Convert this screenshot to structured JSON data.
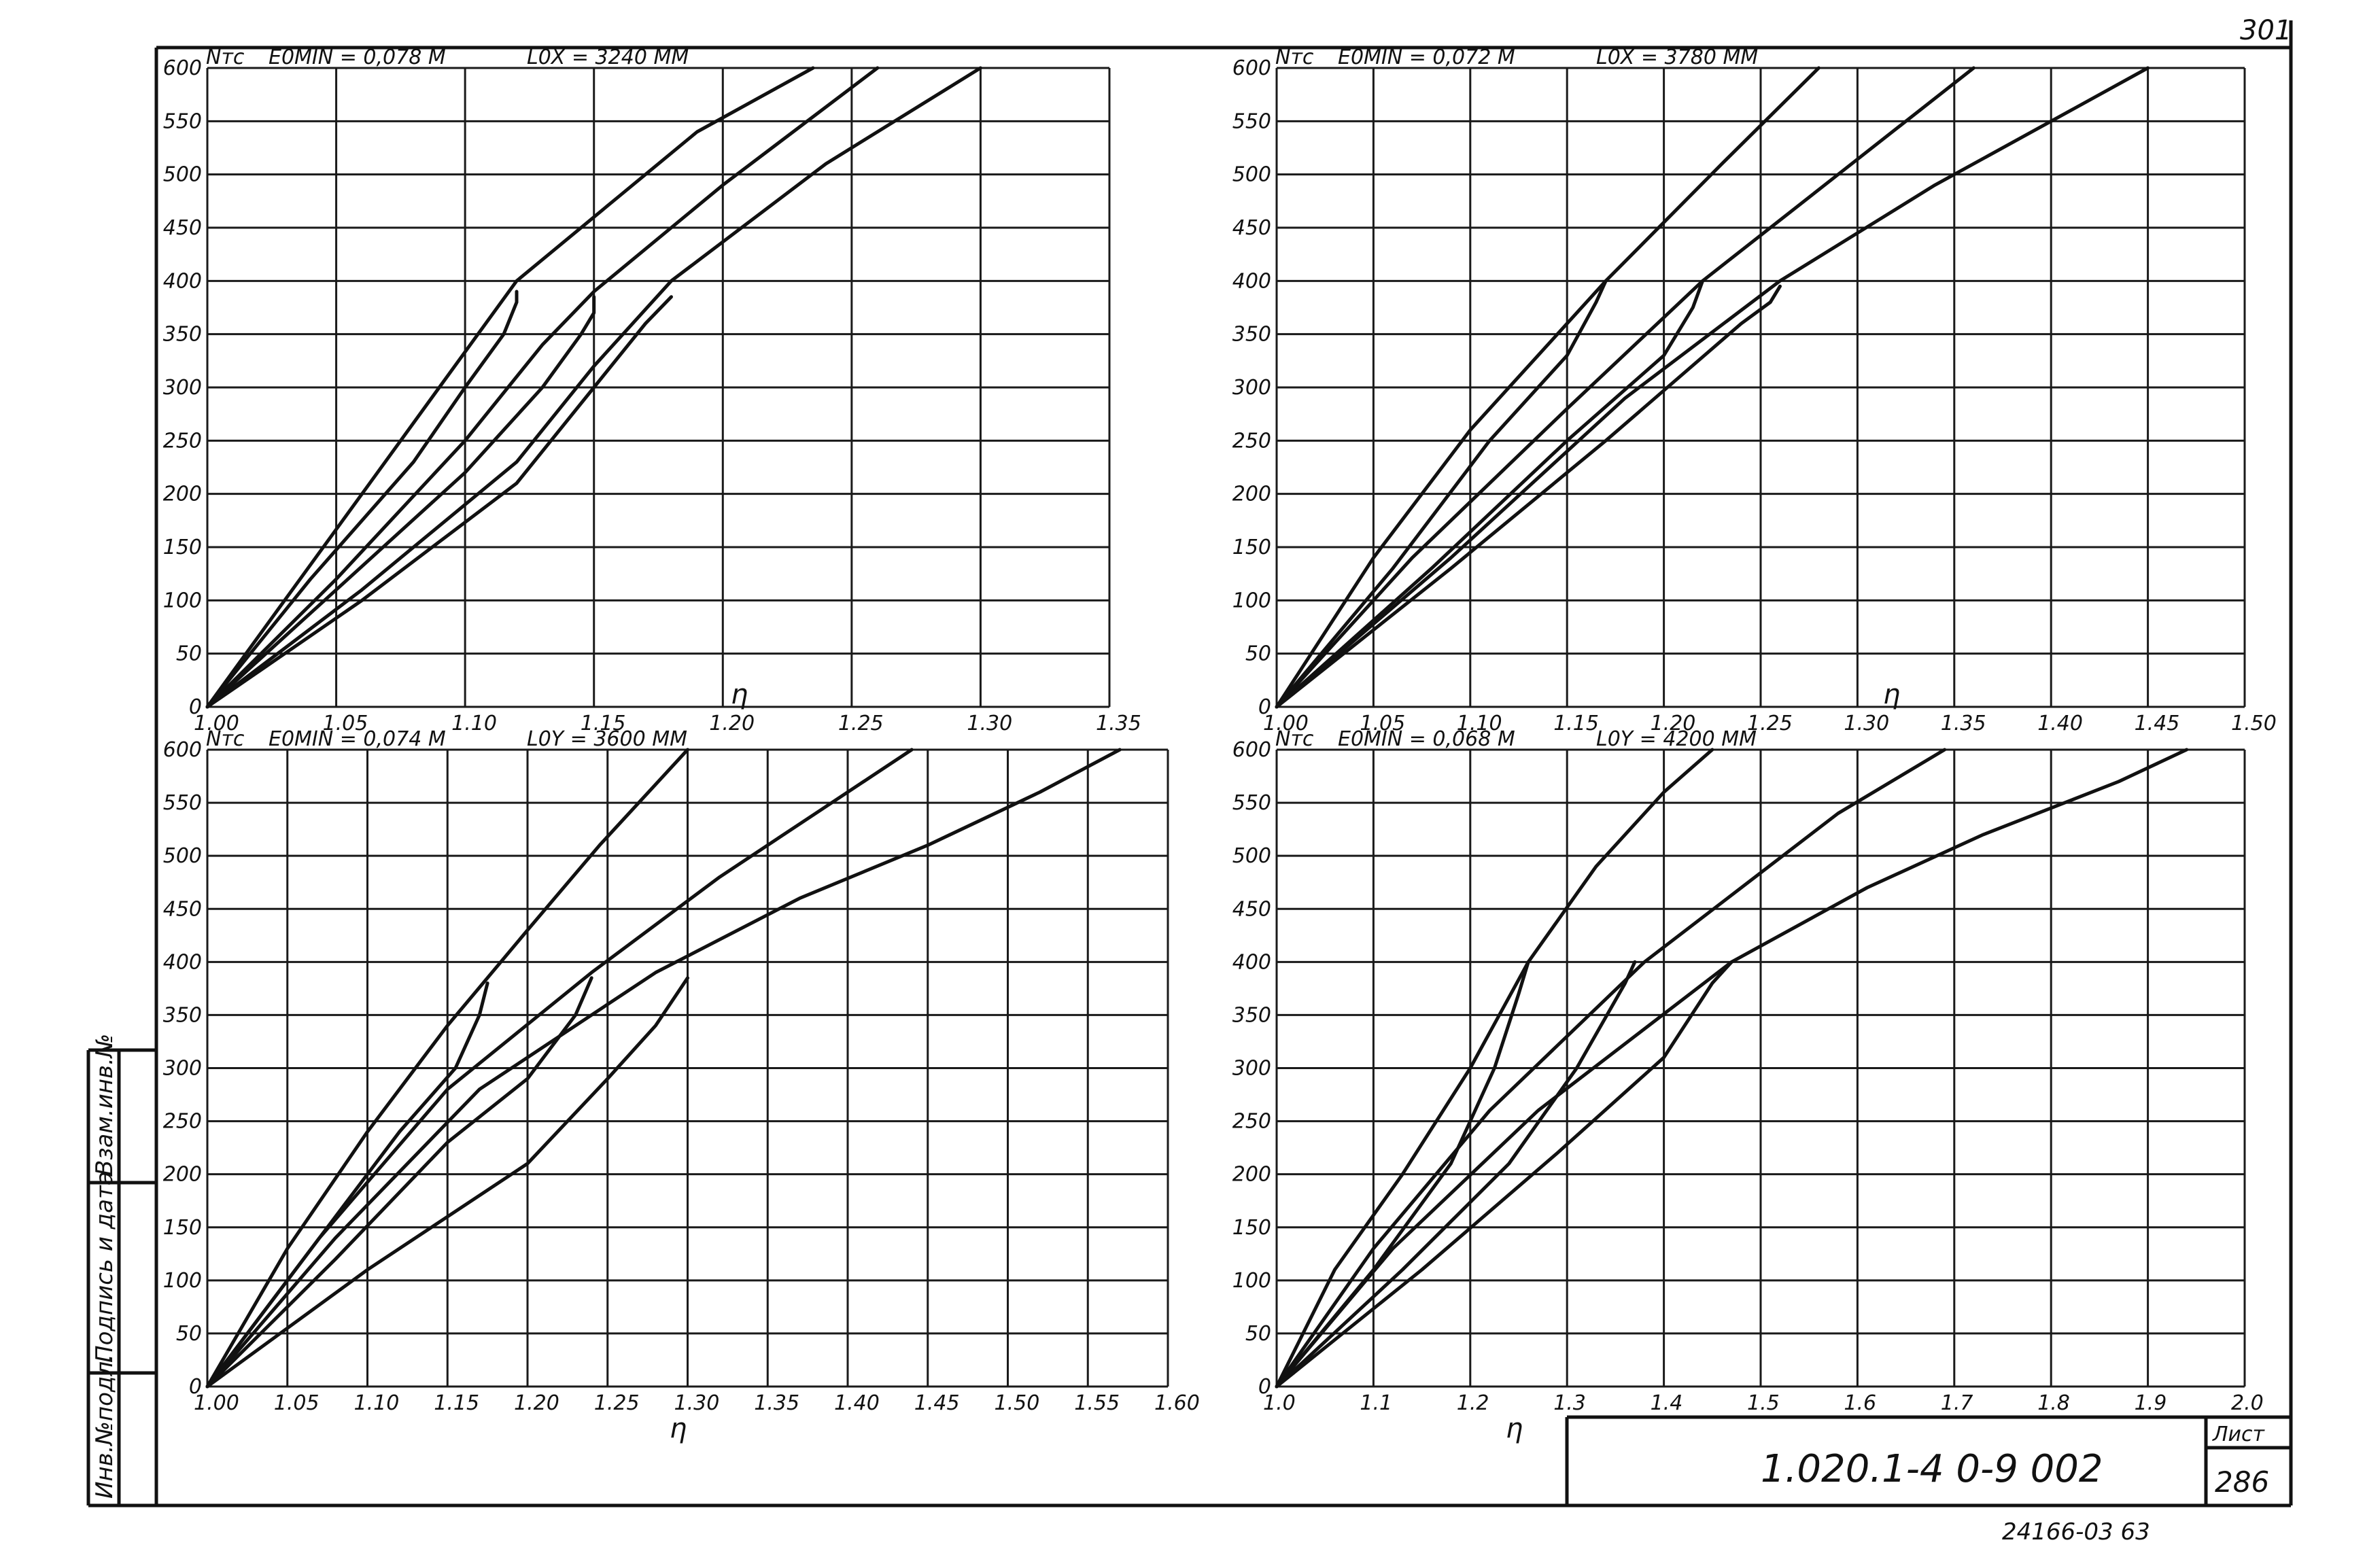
{
  "sheet": {
    "corner_fragment": "301",
    "drawing_code": "1.020.1-4   0-9   002",
    "sheet_label": "Лист",
    "sheet_number": "286",
    "bottom_number": "24166-03 63",
    "side_labels": [
      "Инв.№подл.",
      "Подпись и дата",
      "Взам.инв.№"
    ]
  },
  "chart_data": [
    {
      "type": "line",
      "y_unit": "Nтс",
      "param_left": "E0MIN = 0,078 М",
      "param_right": "L0X = 3240 ММ",
      "xlabel": "η",
      "xlim": [
        1.0,
        1.35
      ],
      "ylim": [
        0,
        600
      ],
      "x_ticks": [
        "1.00",
        "1.05",
        "1.10",
        "1.15",
        "1.20",
        "1.25",
        "1.30",
        "1.35"
      ],
      "y_ticks": [
        "0",
        "50",
        "100",
        "150",
        "200",
        "250",
        "300",
        "350",
        "400",
        "450",
        "500",
        "550",
        "600"
      ],
      "grid": true,
      "series": [
        {
          "x": [
            1.0,
            1.03,
            1.06,
            1.09,
            1.12,
            1.16,
            1.19,
            1.235
          ],
          "y": [
            0,
            100,
            200,
            300,
            400,
            480,
            540,
            600
          ]
        },
        {
          "x": [
            1.0,
            1.05,
            1.1,
            1.13,
            1.15,
            1.2,
            1.26
          ],
          "y": [
            0,
            120,
            250,
            340,
            390,
            490,
            600
          ]
        },
        {
          "x": [
            1.0,
            1.06,
            1.12,
            1.15,
            1.18,
            1.24,
            1.3
          ],
          "y": [
            0,
            110,
            230,
            320,
            400,
            510,
            600
          ]
        },
        {
          "x": [
            1.0,
            1.04,
            1.08,
            1.1,
            1.115,
            1.12,
            1.12
          ],
          "y": [
            0,
            120,
            230,
            300,
            350,
            380,
            390
          ]
        },
        {
          "x": [
            1.0,
            1.05,
            1.1,
            1.13,
            1.145,
            1.15,
            1.15
          ],
          "y": [
            0,
            110,
            220,
            300,
            350,
            370,
            385
          ]
        },
        {
          "x": [
            1.0,
            1.06,
            1.12,
            1.15,
            1.17,
            1.18
          ],
          "y": [
            0,
            100,
            210,
            300,
            360,
            385
          ]
        }
      ]
    },
    {
      "type": "line",
      "y_unit": "Nтс",
      "param_left": "E0MIN = 0,072 М",
      "param_right": "L0X = 3780 ММ",
      "xlabel": "η",
      "xlim": [
        1.0,
        1.5
      ],
      "ylim": [
        0,
        600
      ],
      "x_ticks": [
        "1.00",
        "1.05",
        "1.10",
        "1.15",
        "1.20",
        "1.25",
        "1.30",
        "1.35",
        "1.40",
        "1.45",
        "1.50"
      ],
      "y_ticks": [
        "0",
        "50",
        "100",
        "150",
        "200",
        "250",
        "300",
        "350",
        "400",
        "450",
        "500",
        "550",
        "600"
      ],
      "grid": true,
      "series": [
        {
          "x": [
            1.0,
            1.05,
            1.1,
            1.17,
            1.23,
            1.28
          ],
          "y": [
            0,
            140,
            260,
            400,
            510,
            600
          ]
        },
        {
          "x": [
            1.0,
            1.07,
            1.15,
            1.22,
            1.29,
            1.36
          ],
          "y": [
            0,
            140,
            280,
            400,
            500,
            600
          ]
        },
        {
          "x": [
            1.0,
            1.09,
            1.18,
            1.26,
            1.34,
            1.41,
            1.45
          ],
          "y": [
            0,
            140,
            290,
            400,
            490,
            560,
            600
          ]
        },
        {
          "x": [
            1.0,
            1.06,
            1.11,
            1.15,
            1.165,
            1.17
          ],
          "y": [
            0,
            130,
            250,
            330,
            380,
            400
          ]
        },
        {
          "x": [
            1.0,
            1.08,
            1.15,
            1.2,
            1.215,
            1.22
          ],
          "y": [
            0,
            130,
            250,
            330,
            375,
            400
          ]
        },
        {
          "x": [
            1.0,
            1.09,
            1.17,
            1.24,
            1.255,
            1.26
          ],
          "y": [
            0,
            130,
            250,
            360,
            380,
            395
          ]
        }
      ]
    },
    {
      "type": "line",
      "y_unit": "Nтс",
      "param_left": "E0MIN = 0,074 М",
      "param_right": "L0Y = 3600 ММ",
      "xlabel": "η",
      "xlim": [
        1.0,
        1.6
      ],
      "ylim": [
        0,
        600
      ],
      "x_ticks": [
        "1.00",
        "1.05",
        "1.10",
        "1.15",
        "1.20",
        "1.25",
        "1.30",
        "1.35",
        "1.40",
        "1.45",
        "1.50",
        "1.55",
        "1.60"
      ],
      "y_ticks": [
        "0",
        "50",
        "100",
        "150",
        "200",
        "250",
        "300",
        "350",
        "400",
        "450",
        "500",
        "550",
        "600"
      ],
      "grid": true,
      "series": [
        {
          "x": [
            1.0,
            1.05,
            1.1,
            1.15,
            1.2,
            1.245,
            1.3
          ],
          "y": [
            0,
            130,
            240,
            340,
            430,
            510,
            600
          ]
        },
        {
          "x": [
            1.0,
            1.07,
            1.15,
            1.24,
            1.32,
            1.38,
            1.44
          ],
          "y": [
            0,
            140,
            280,
            390,
            480,
            540,
            600
          ]
        },
        {
          "x": [
            1.0,
            1.08,
            1.17,
            1.28,
            1.37,
            1.45,
            1.52,
            1.57
          ],
          "y": [
            0,
            140,
            280,
            390,
            460,
            510,
            560,
            600
          ]
        },
        {
          "x": [
            1.0,
            1.06,
            1.12,
            1.155,
            1.17,
            1.175
          ],
          "y": [
            0,
            120,
            240,
            300,
            350,
            380
          ]
        },
        {
          "x": [
            1.0,
            1.08,
            1.15,
            1.2,
            1.23,
            1.24
          ],
          "y": [
            0,
            120,
            230,
            290,
            350,
            385
          ]
        },
        {
          "x": [
            1.0,
            1.1,
            1.2,
            1.25,
            1.28,
            1.3
          ],
          "y": [
            0,
            110,
            210,
            290,
            340,
            385
          ]
        }
      ]
    },
    {
      "type": "line",
      "y_unit": "Nтс",
      "param_left": "E0MIN = 0,068 М",
      "param_right": "L0Y = 4200 ММ",
      "xlabel": "η",
      "xlim": [
        1.0,
        2.0
      ],
      "ylim": [
        0,
        600
      ],
      "x_ticks": [
        "1.0",
        "1.1",
        "1.2",
        "1.3",
        "1.4",
        "1.5",
        "1.6",
        "1.7",
        "1.8",
        "1.9",
        "2.0"
      ],
      "y_ticks": [
        "0",
        "50",
        "100",
        "150",
        "200",
        "250",
        "300",
        "350",
        "400",
        "450",
        "500",
        "550",
        "600"
      ],
      "grid": true,
      "series": [
        {
          "x": [
            1.0,
            1.06,
            1.13,
            1.2,
            1.26,
            1.33,
            1.4,
            1.45
          ],
          "y": [
            0,
            110,
            200,
            300,
            400,
            490,
            560,
            600
          ]
        },
        {
          "x": [
            1.0,
            1.1,
            1.22,
            1.38,
            1.48,
            1.58,
            1.69
          ],
          "y": [
            0,
            130,
            260,
            400,
            470,
            540,
            600
          ]
        },
        {
          "x": [
            1.0,
            1.12,
            1.27,
            1.47,
            1.61,
            1.73,
            1.87,
            1.94
          ],
          "y": [
            0,
            130,
            260,
            400,
            470,
            520,
            570,
            600
          ]
        },
        {
          "x": [
            1.0,
            1.1,
            1.18,
            1.225,
            1.25,
            1.26
          ],
          "y": [
            0,
            110,
            210,
            300,
            370,
            400
          ]
        },
        {
          "x": [
            1.0,
            1.13,
            1.24,
            1.31,
            1.36,
            1.37
          ],
          "y": [
            0,
            110,
            210,
            300,
            380,
            400
          ]
        },
        {
          "x": [
            1.0,
            1.15,
            1.29,
            1.4,
            1.45,
            1.47
          ],
          "y": [
            0,
            110,
            220,
            310,
            380,
            400
          ]
        }
      ]
    }
  ]
}
